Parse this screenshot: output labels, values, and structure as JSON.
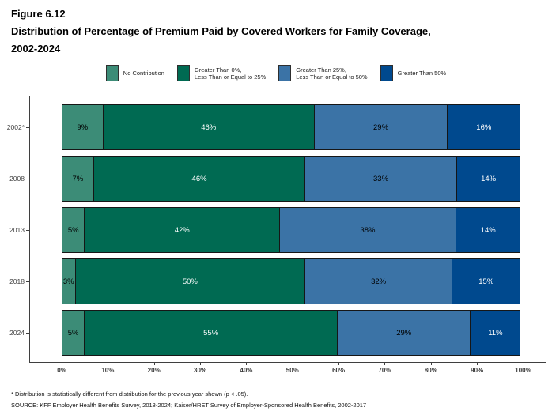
{
  "figure": {
    "label": "Figure 6.12",
    "title_line1": "Distribution of Percentage of Premium Paid by Covered Workers for Family Coverage,",
    "title_line2": "2002-2024"
  },
  "legend": [
    {
      "lines": [
        "No Contribution"
      ],
      "color": "#3C8C77"
    },
    {
      "lines": [
        "Greater Than 0%,",
        "Less Than or Equal to 25%"
      ],
      "color": "#006A52"
    },
    {
      "lines": [
        "Greater Than 25%,",
        "Less Than or Equal to 50%"
      ],
      "color": "#3B73A6"
    },
    {
      "lines": [
        "Greater Than 50%"
      ],
      "color": "#00498E"
    }
  ],
  "chart_data": {
    "type": "bar",
    "stacked": true,
    "orientation": "horizontal",
    "title": "Figure 6.12 — Distribution of Percentage of Premium Paid by Covered Workers for Family Coverage, 2002-2024",
    "categories": [
      "2002*",
      "2008",
      "2013",
      "2018",
      "2024"
    ],
    "series": [
      {
        "name": "No Contribution",
        "color": "#3C8C77",
        "label_color": "#000000",
        "values": [
          9,
          7,
          5,
          3,
          5
        ]
      },
      {
        "name": "Greater Than 0%, Less Than or Equal to 25%",
        "color": "#006A52",
        "label_color": "#FFFFFF",
        "values": [
          46,
          46,
          42,
          50,
          55
        ]
      },
      {
        "name": "Greater Than 25%, Less Than or Equal to 50%",
        "color": "#3B73A6",
        "label_color": "#000000",
        "values": [
          29,
          33,
          38,
          32,
          29
        ]
      },
      {
        "name": "Greater Than 50%",
        "color": "#00498E",
        "label_color": "#FFFFFF",
        "values": [
          16,
          14,
          14,
          15,
          11
        ]
      }
    ],
    "value_suffix": "%",
    "x_ticks": [
      "0%",
      "10%",
      "20%",
      "30%",
      "40%",
      "50%",
      "60%",
      "70%",
      "80%",
      "90%",
      "100%"
    ],
    "xlim": [
      0,
      100
    ],
    "xlabel": "",
    "ylabel": "",
    "grid": false,
    "legend_position": "top"
  },
  "footnotes": {
    "asterisk": "* Distribution is statistically different from distribution for the previous year shown (p < .05).",
    "source": "SOURCE: KFF Employer Health Benefits Survey, 2018-2024; Kaiser/HRET Survey of Employer-Sponsored Health Benefits, 2002-2017"
  }
}
